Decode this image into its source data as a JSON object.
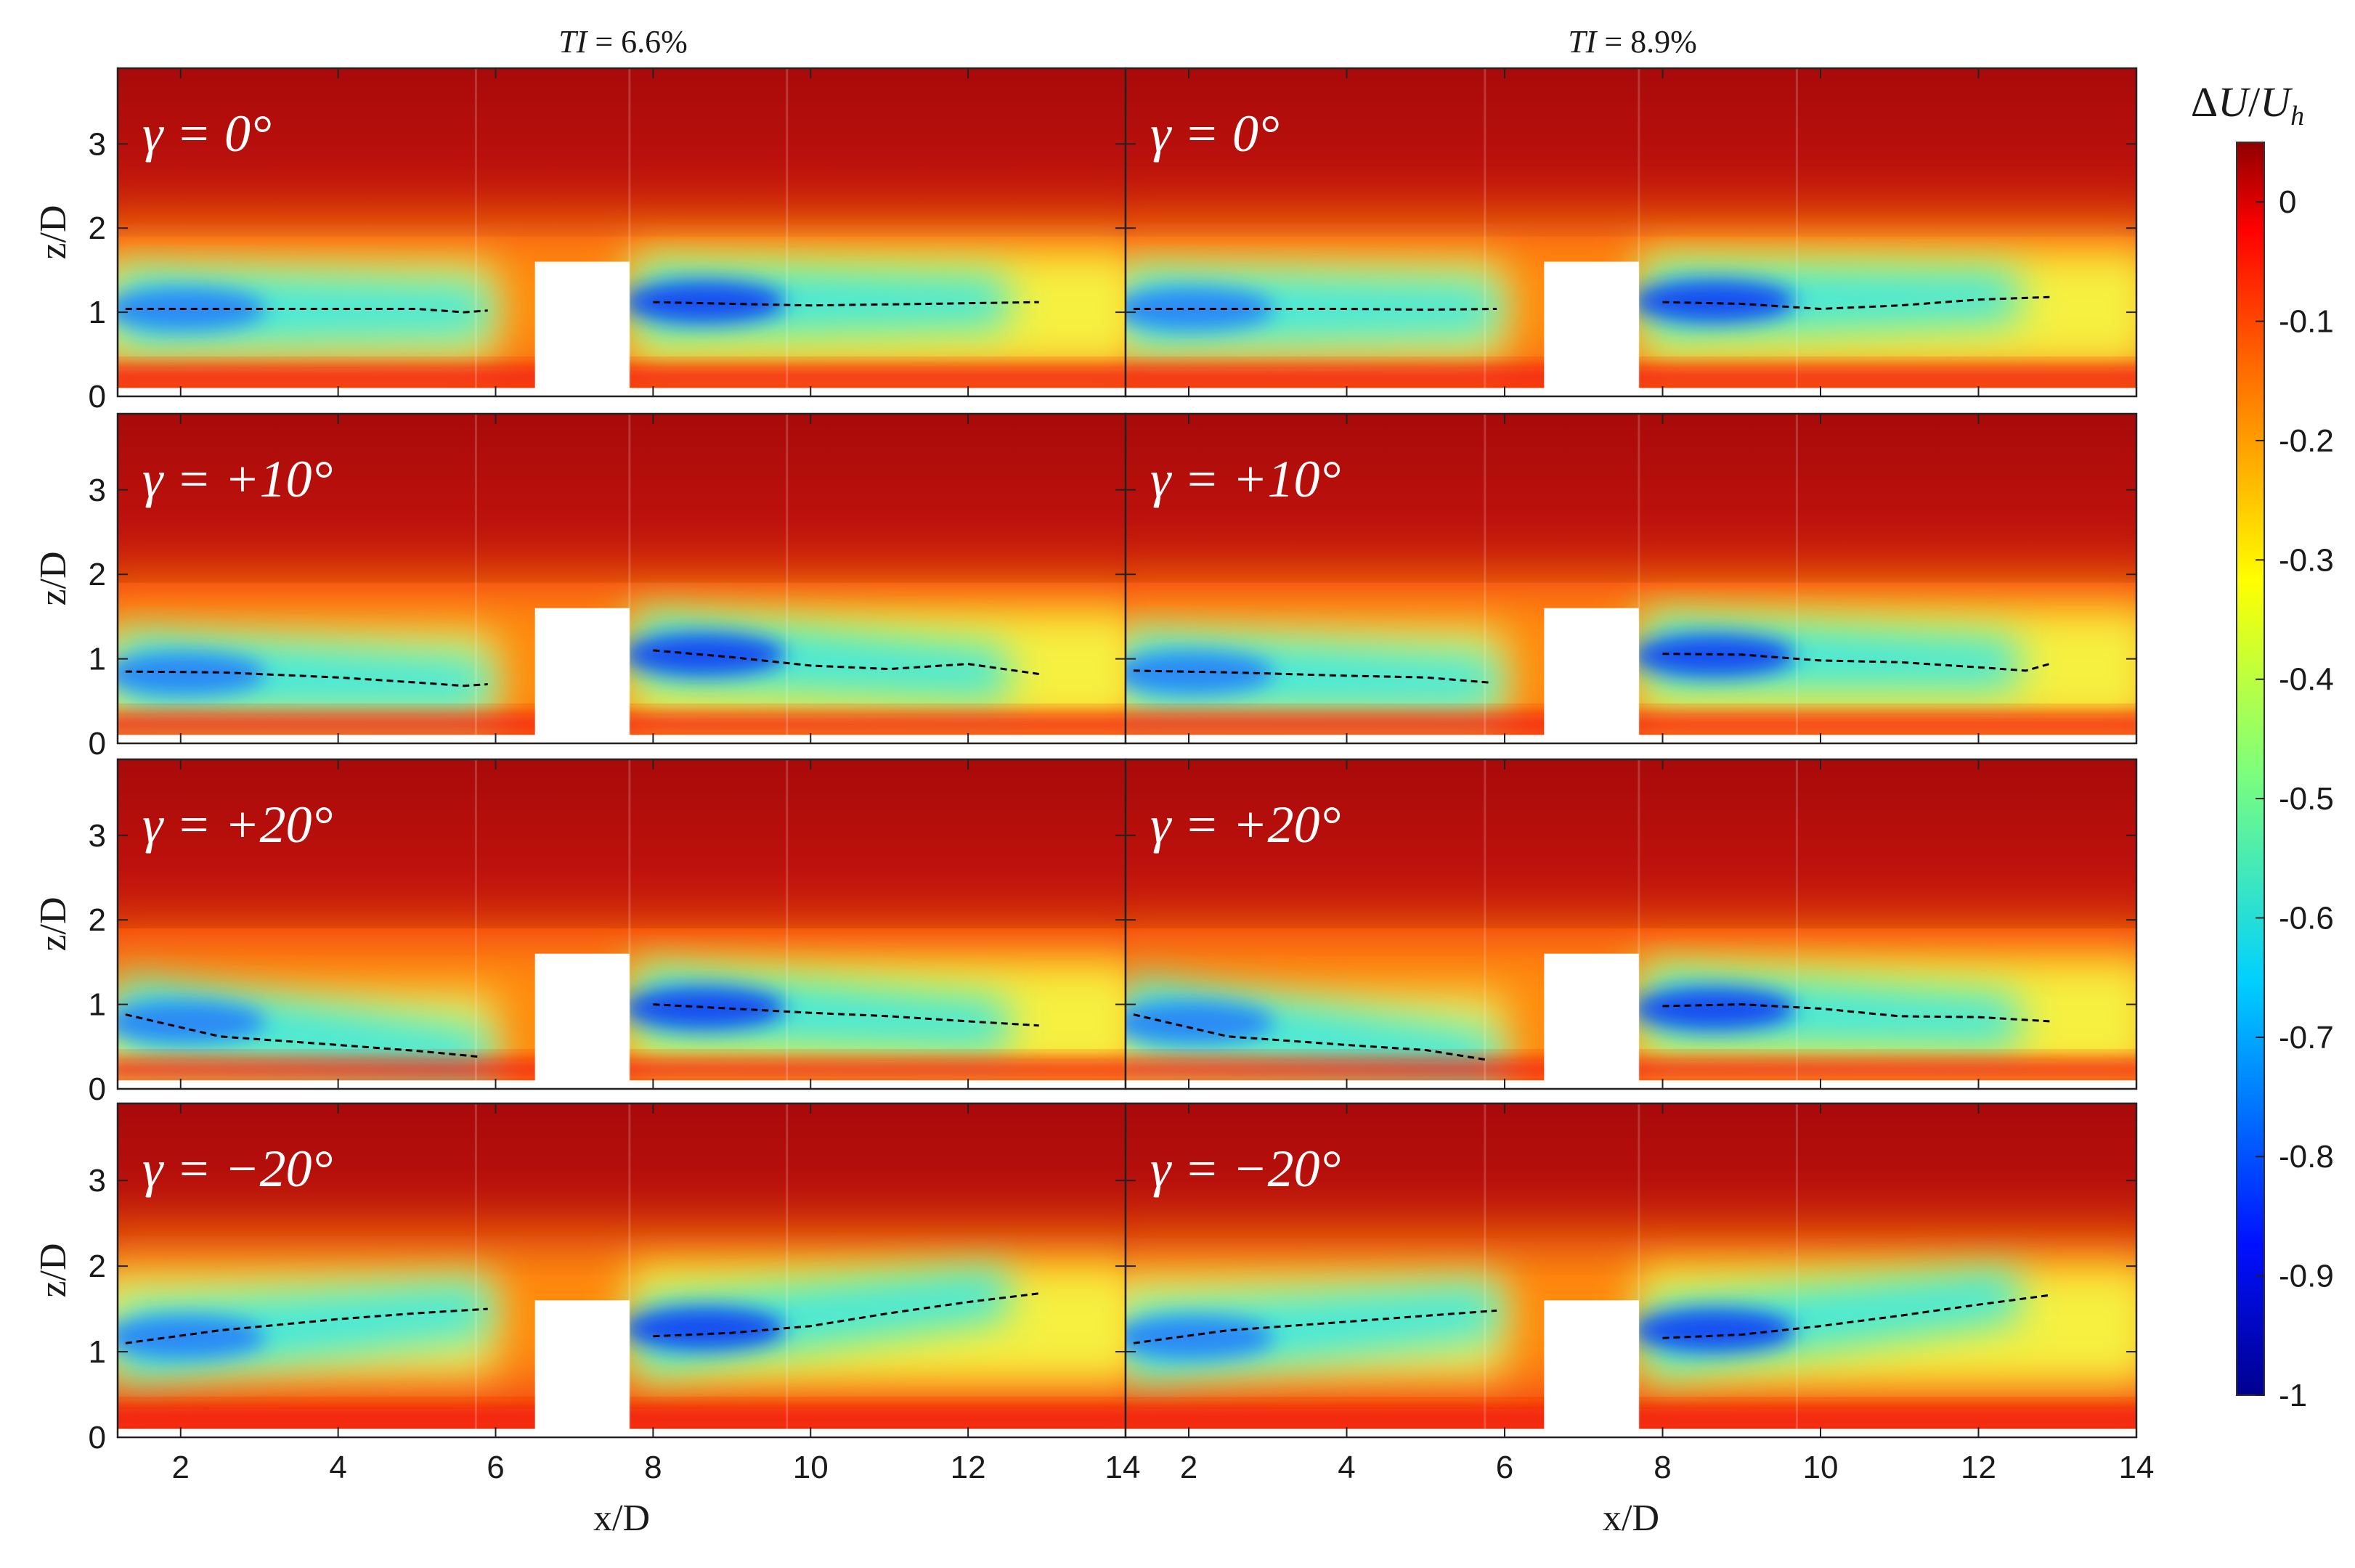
{
  "chart_data": {
    "type": "heatmap",
    "colorbar": {
      "title": "ΔU/U_h",
      "range": [
        -1,
        0.05
      ],
      "ticks": [
        "0",
        "-0.1",
        "-0.2",
        "-0.3",
        "-0.4",
        "-0.5",
        "-0.6",
        "-0.7",
        "-0.8",
        "-0.9",
        "-1"
      ],
      "colormap": "jet"
    },
    "columns": [
      {
        "title": "TI = 6.6%",
        "xlabel": "x/D"
      },
      {
        "title": "TI = 8.9%",
        "xlabel": "x/D"
      }
    ],
    "ylabel": "z/D",
    "xlim": [
      1.2,
      14
    ],
    "ylim": [
      0,
      3.9
    ],
    "x_ticks": [
      "2",
      "4",
      "6",
      "8",
      "10",
      "12",
      "14"
    ],
    "y_ticks": [
      "0",
      "1",
      "2",
      "3"
    ],
    "turbine_block": {
      "x_start": 6.5,
      "x_end": 7.7,
      "z_top": 1.6
    },
    "rows": [
      {
        "label": "γ = 0°",
        "panels": [
          {
            "wake_center_upstream": [
              [
                1.3,
                1.04
              ],
              [
                2.5,
                1.04
              ],
              [
                4,
                1.04
              ],
              [
                5,
                1.04
              ],
              [
                5.6,
                1.0
              ],
              [
                5.9,
                1.02
              ]
            ],
            "wake_center_downstream": [
              [
                8,
                1.12
              ],
              [
                9,
                1.1
              ],
              [
                10,
                1.08
              ],
              [
                11.5,
                1.1
              ],
              [
                12.9,
                1.12
              ]
            ]
          },
          {
            "wake_center_upstream": [
              [
                1.3,
                1.04
              ],
              [
                2.5,
                1.04
              ],
              [
                4,
                1.04
              ],
              [
                5,
                1.03
              ],
              [
                5.9,
                1.04
              ]
            ],
            "wake_center_downstream": [
              [
                8,
                1.12
              ],
              [
                9,
                1.1
              ],
              [
                10,
                1.04
              ],
              [
                11,
                1.08
              ],
              [
                12,
                1.15
              ],
              [
                12.9,
                1.18
              ]
            ]
          }
        ]
      },
      {
        "label": "γ = +10°",
        "panels": [
          {
            "wake_center_upstream": [
              [
                1.3,
                0.85
              ],
              [
                2.5,
                0.84
              ],
              [
                4,
                0.78
              ],
              [
                5,
                0.72
              ],
              [
                5.6,
                0.68
              ],
              [
                5.9,
                0.7
              ]
            ],
            "wake_center_downstream": [
              [
                8,
                1.1
              ],
              [
                9,
                1.02
              ],
              [
                10,
                0.92
              ],
              [
                11,
                0.88
              ],
              [
                12,
                0.94
              ],
              [
                12.9,
                0.82
              ]
            ]
          },
          {
            "wake_center_upstream": [
              [
                1.3,
                0.86
              ],
              [
                2.5,
                0.84
              ],
              [
                4,
                0.8
              ],
              [
                5,
                0.78
              ],
              [
                5.8,
                0.72
              ]
            ],
            "wake_center_downstream": [
              [
                8,
                1.06
              ],
              [
                9,
                1.05
              ],
              [
                10,
                0.98
              ],
              [
                11,
                0.96
              ],
              [
                12,
                0.9
              ],
              [
                12.6,
                0.86
              ],
              [
                12.9,
                0.94
              ]
            ]
          }
        ]
      },
      {
        "label": "γ = +20°",
        "panels": [
          {
            "wake_center_upstream": [
              [
                1.3,
                0.88
              ],
              [
                2.5,
                0.62
              ],
              [
                4,
                0.52
              ],
              [
                5,
                0.45
              ],
              [
                5.8,
                0.38
              ]
            ],
            "wake_center_downstream": [
              [
                8,
                1.0
              ],
              [
                9,
                0.95
              ],
              [
                10,
                0.9
              ],
              [
                11,
                0.86
              ],
              [
                12,
                0.8
              ],
              [
                12.9,
                0.75
              ]
            ]
          },
          {
            "wake_center_upstream": [
              [
                1.3,
                0.88
              ],
              [
                2.5,
                0.62
              ],
              [
                4,
                0.52
              ],
              [
                5,
                0.46
              ],
              [
                5.8,
                0.34
              ]
            ],
            "wake_center_downstream": [
              [
                8,
                0.98
              ],
              [
                9,
                1.0
              ],
              [
                10,
                0.95
              ],
              [
                11,
                0.86
              ],
              [
                12,
                0.85
              ],
              [
                12.9,
                0.8
              ]
            ]
          }
        ]
      },
      {
        "label": "γ = −20°",
        "panels": [
          {
            "wake_center_upstream": [
              [
                1.3,
                1.1
              ],
              [
                2.5,
                1.25
              ],
              [
                4,
                1.38
              ],
              [
                5,
                1.45
              ],
              [
                5.9,
                1.5
              ]
            ],
            "wake_center_downstream": [
              [
                8,
                1.18
              ],
              [
                9,
                1.22
              ],
              [
                10,
                1.3
              ],
              [
                11,
                1.45
              ],
              [
                12,
                1.58
              ],
              [
                12.9,
                1.68
              ]
            ]
          },
          {
            "wake_center_upstream": [
              [
                1.3,
                1.1
              ],
              [
                2.5,
                1.25
              ],
              [
                4,
                1.35
              ],
              [
                5,
                1.42
              ],
              [
                5.9,
                1.48
              ]
            ],
            "wake_center_downstream": [
              [
                8,
                1.16
              ],
              [
                9,
                1.2
              ],
              [
                10,
                1.3
              ],
              [
                11,
                1.42
              ],
              [
                12,
                1.55
              ],
              [
                12.9,
                1.66
              ]
            ]
          }
        ]
      }
    ]
  }
}
